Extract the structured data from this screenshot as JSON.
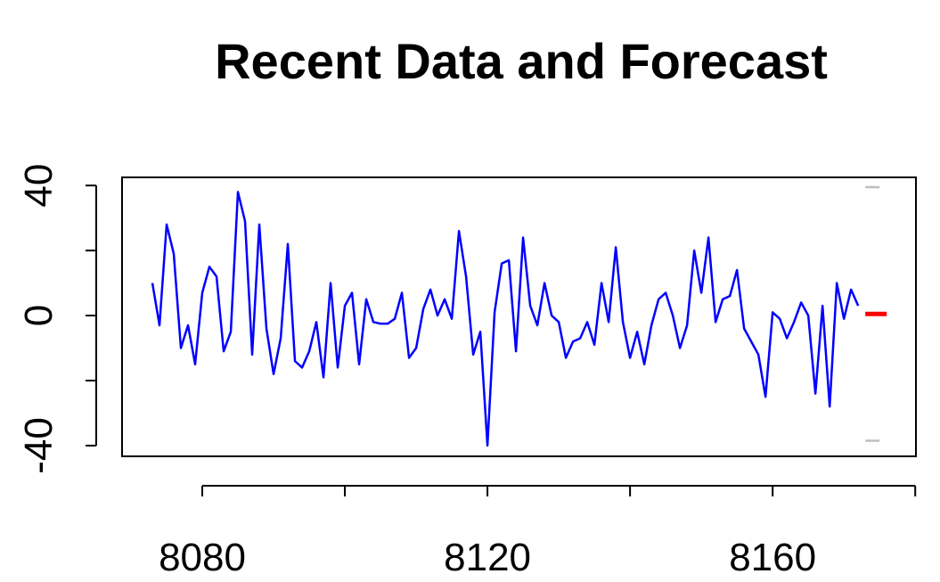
{
  "chart_data": {
    "type": "line",
    "title": "Recent Data and Forecast",
    "xlim": [
      8068.75,
      8180.1
    ],
    "ylim": [
      -43.3,
      42.5
    ],
    "xticks": [
      8080,
      8120,
      8160
    ],
    "xminor_ticks": [
      8100,
      8140,
      8180
    ],
    "yticks": [
      -40,
      0,
      40
    ],
    "yminor_ticks": [
      -20,
      20
    ],
    "series": [
      {
        "name": "data",
        "color": "#0000ff",
        "x": [
          8073,
          8074,
          8075,
          8076,
          8077,
          8078,
          8079,
          8080,
          8081,
          8082,
          8083,
          8084,
          8085,
          8086,
          8087,
          8088,
          8089,
          8090,
          8091,
          8092,
          8093,
          8094,
          8095,
          8096,
          8097,
          8098,
          8099,
          8100,
          8101,
          8102,
          8103,
          8104,
          8105,
          8106,
          8107,
          8108,
          8109,
          8110,
          8111,
          8112,
          8113,
          8114,
          8115,
          8116,
          8117,
          8118,
          8119,
          8120,
          8121,
          8122,
          8123,
          8124,
          8125,
          8126,
          8127,
          8128,
          8129,
          8130,
          8131,
          8132,
          8133,
          8134,
          8135,
          8136,
          8137,
          8138,
          8139,
          8140,
          8141,
          8142,
          8143,
          8144,
          8145,
          8146,
          8147,
          8148,
          8149,
          8150,
          8151,
          8152,
          8153,
          8154,
          8155,
          8156,
          8157,
          8158,
          8159,
          8160,
          8161,
          8162,
          8163,
          8164,
          8165,
          8166,
          8167,
          8168,
          8169,
          8170,
          8171,
          8172
        ],
        "values": [
          10,
          -3,
          28,
          19,
          -10,
          -3,
          -15,
          7,
          15,
          12,
          -11,
          -5,
          38,
          29,
          -12,
          28,
          -4,
          -18,
          -7,
          22,
          -14,
          -16,
          -11,
          -2,
          -19,
          10,
          -16,
          3,
          7,
          -15,
          5,
          -2,
          -2.5,
          -2.5,
          -1,
          7,
          -13,
          -10,
          2,
          8,
          0,
          5,
          -1,
          26,
          12,
          -12,
          -5,
          -40,
          1,
          16,
          17,
          -11,
          24,
          3,
          -3,
          10,
          0,
          -2,
          -13,
          -8,
          -7,
          -2,
          -9,
          10,
          -2,
          21,
          -2,
          -13,
          -5,
          -15,
          -3,
          5,
          7,
          0,
          -10,
          -3,
          20,
          7,
          24,
          -2,
          5,
          6,
          14,
          -4,
          -8,
          -12,
          -25,
          1,
          -1,
          -7,
          -2,
          4,
          0,
          -24,
          3,
          -28,
          10,
          -1,
          8,
          3
        ]
      },
      {
        "name": "forecast",
        "color": "#ff0000",
        "x": [
          8173,
          8174,
          8175,
          8176
        ],
        "values": [
          0.5,
          0.5,
          0.5,
          0.5
        ]
      },
      {
        "name": "upper",
        "color": "#bebebe",
        "x": [
          8173,
          8175
        ],
        "values": [
          39.5,
          39.5
        ]
      },
      {
        "name": "lower",
        "color": "#bebebe",
        "x": [
          8173,
          8175
        ],
        "values": [
          -38.5,
          -38.5
        ]
      }
    ]
  }
}
